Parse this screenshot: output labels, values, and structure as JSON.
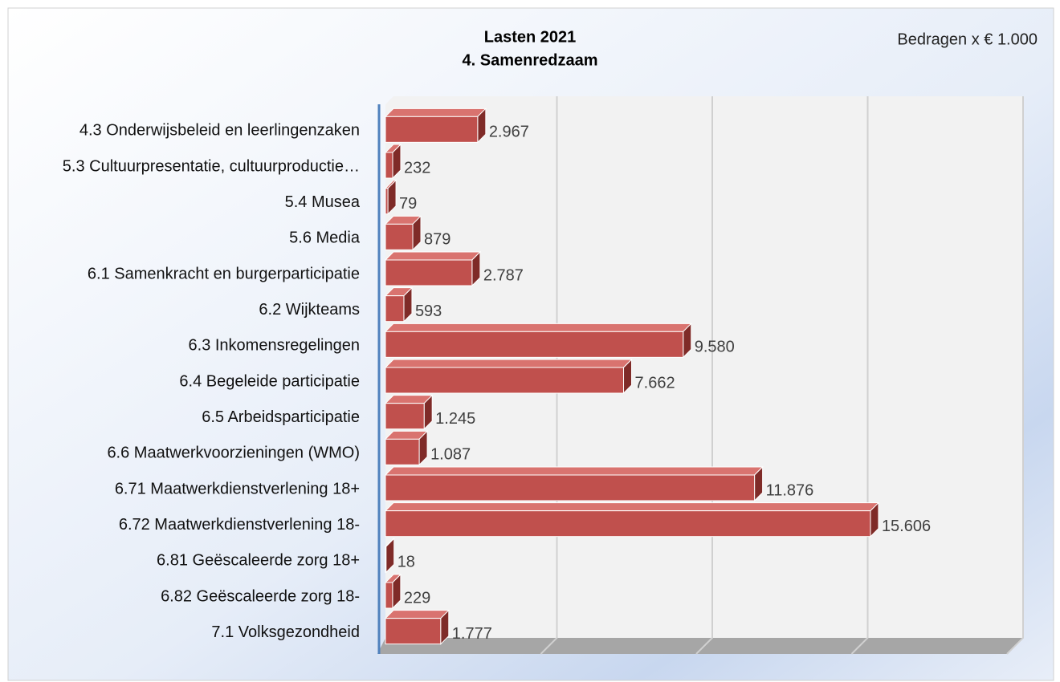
{
  "chart_data": {
    "type": "bar",
    "orientation": "horizontal",
    "title": "Lasten 2021",
    "subtitle": "4. Samenredzaam",
    "annotation": "Bedragen x € 1.000",
    "categories": [
      "4.3 Onderwijsbeleid en leerlingenzaken",
      "5.3 Cultuurpresentatie, cultuurproductie…",
      "5.4 Musea",
      "5.6 Media",
      "6.1 Samenkracht en burgerparticipatie",
      "6.2 Wijkteams",
      "6.3 Inkomensregelingen",
      "6.4 Begeleide participatie",
      "6.5 Arbeidsparticipatie",
      "6.6 Maatwerkvoorzieningen (WMO)",
      "6.71 Maatwerkdienstverlening 18+",
      "6.72 Maatwerkdienstverlening 18-",
      "6.81 Geëscaleerde zorg 18+",
      "6.82 Geëscaleerde zorg 18-",
      "7.1 Volksgezondheid"
    ],
    "values": [
      2967,
      232,
      79,
      879,
      2787,
      593,
      9580,
      7662,
      1245,
      1087,
      11876,
      15606,
      18,
      229,
      1777
    ],
    "value_labels": [
      "2.967",
      "232",
      "79",
      "879",
      "2.787",
      "593",
      "9.580",
      "7.662",
      "1.245",
      "1.087",
      "11.876",
      "15.606",
      "18",
      "229",
      "1.777"
    ],
    "color": "#c0504d",
    "xlim": [
      0,
      20000
    ],
    "xticks": [
      0,
      5000,
      10000,
      15000,
      20000
    ],
    "grid": true
  }
}
